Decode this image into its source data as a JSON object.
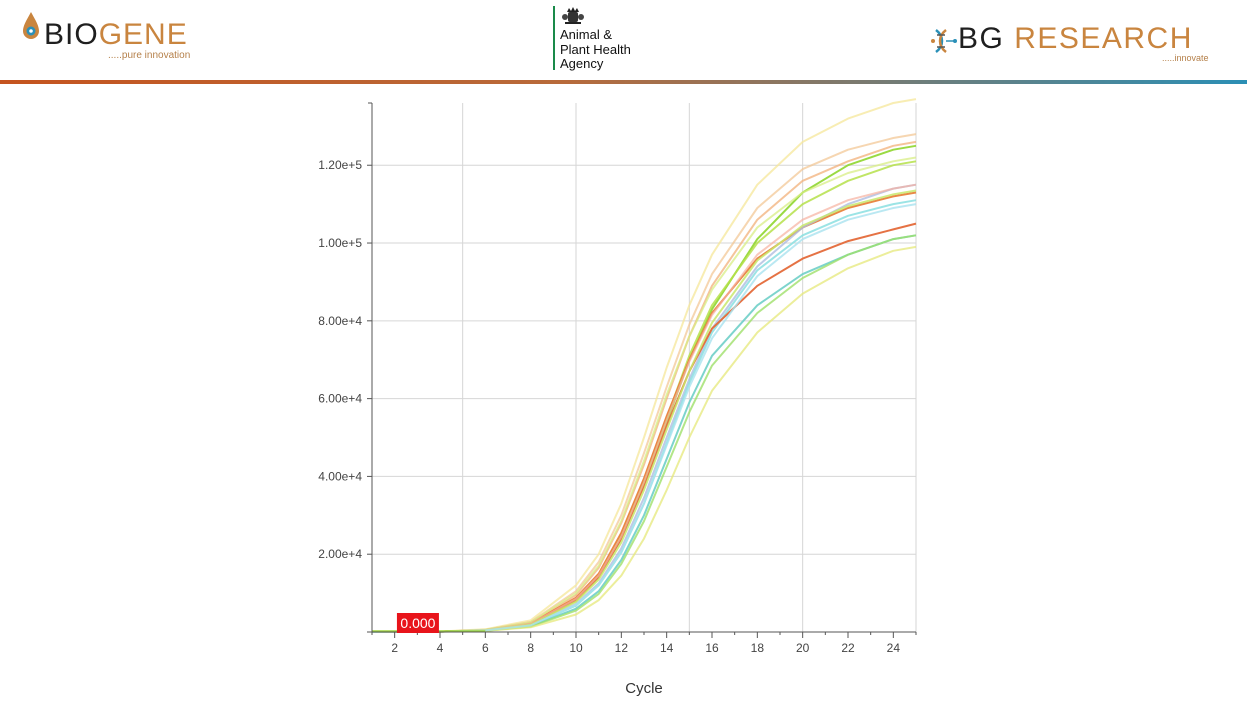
{
  "header": {
    "biogene": {
      "brand_part1": "BIO",
      "brand_part2": "GENE",
      "tagline": ".....pure innovation"
    },
    "apha": {
      "name": "Animal &\nPlant Health\nAgency",
      "crest_icon": "royal-crest-icon"
    },
    "bg_research": {
      "brand_part1": "BG ",
      "brand_part2": "RESEARCH",
      "tagline": ".....innovate",
      "icon": "circuit-dna-icon"
    },
    "rule_colors": [
      "#c5541f",
      "#2b8fb5"
    ]
  },
  "chart_data": {
    "type": "line",
    "title": "",
    "xlabel": "Cycle",
    "ylabel": "",
    "xlim": [
      1,
      25
    ],
    "ylim": [
      0,
      136000
    ],
    "x_ticks": [
      2,
      4,
      6,
      8,
      10,
      12,
      14,
      16,
      18,
      20,
      22,
      24
    ],
    "y_ticks": [
      0,
      20000,
      40000,
      60000,
      80000,
      100000,
      120000
    ],
    "y_tick_labels": [
      "",
      "2.00e+4",
      "4.00e+4",
      "6.00e+4",
      "8.00e+4",
      "1.00e+5",
      "1.20e+5"
    ],
    "grid_x": [
      5,
      10,
      15,
      20
    ],
    "grid": true,
    "legend": "none",
    "threshold_label": "0.000",
    "threshold_color": "#e8141b",
    "series": [
      {
        "color": "#f5e79a",
        "opacity": 0.75,
        "values": [
          [
            1,
            0
          ],
          [
            2,
            50
          ],
          [
            4,
            120
          ],
          [
            6,
            700
          ],
          [
            8,
            3000
          ],
          [
            10,
            12000
          ],
          [
            11,
            20000
          ],
          [
            12,
            33000
          ],
          [
            13,
            50000
          ],
          [
            14,
            68000
          ],
          [
            15,
            84000
          ],
          [
            16,
            97000
          ],
          [
            18,
            115000
          ],
          [
            20,
            126000
          ],
          [
            22,
            132000
          ],
          [
            24,
            136000
          ],
          [
            25,
            137000
          ]
        ]
      },
      {
        "color": "#f2c590",
        "opacity": 0.7,
        "values": [
          [
            1,
            0
          ],
          [
            2,
            50
          ],
          [
            4,
            100
          ],
          [
            6,
            600
          ],
          [
            8,
            2600
          ],
          [
            10,
            10500
          ],
          [
            11,
            18000
          ],
          [
            12,
            30000
          ],
          [
            13,
            46000
          ],
          [
            14,
            63000
          ],
          [
            15,
            79000
          ],
          [
            16,
            92000
          ],
          [
            18,
            109000
          ],
          [
            20,
            119000
          ],
          [
            22,
            124000
          ],
          [
            24,
            127000
          ],
          [
            25,
            128000
          ]
        ]
      },
      {
        "color": "#f2b07a",
        "opacity": 0.75,
        "values": [
          [
            1,
            0
          ],
          [
            2,
            40
          ],
          [
            4,
            100
          ],
          [
            6,
            500
          ],
          [
            8,
            2300
          ],
          [
            10,
            9500
          ],
          [
            11,
            16500
          ],
          [
            12,
            28000
          ],
          [
            13,
            43000
          ],
          [
            14,
            60000
          ],
          [
            15,
            76000
          ],
          [
            16,
            89000
          ],
          [
            18,
            106000
          ],
          [
            20,
            116000
          ],
          [
            22,
            121000
          ],
          [
            24,
            125000
          ],
          [
            25,
            126000
          ]
        ]
      },
      {
        "color": "#8fd62f",
        "opacity": 0.9,
        "values": [
          [
            1,
            0
          ],
          [
            2,
            40
          ],
          [
            4,
            100
          ],
          [
            6,
            450
          ],
          [
            8,
            2000
          ],
          [
            10,
            8000
          ],
          [
            11,
            14000
          ],
          [
            12,
            24000
          ],
          [
            13,
            38000
          ],
          [
            14,
            54000
          ],
          [
            15,
            70000
          ],
          [
            16,
            83000
          ],
          [
            18,
            101000
          ],
          [
            20,
            113000
          ],
          [
            22,
            120000
          ],
          [
            24,
            124000
          ],
          [
            25,
            125000
          ]
        ]
      },
      {
        "color": "#b5e04a",
        "opacity": 0.85,
        "values": [
          [
            1,
            0
          ],
          [
            2,
            40
          ],
          [
            4,
            100
          ],
          [
            6,
            450
          ],
          [
            8,
            2100
          ],
          [
            10,
            8500
          ],
          [
            11,
            14500
          ],
          [
            12,
            25000
          ],
          [
            13,
            39000
          ],
          [
            14,
            55000
          ],
          [
            15,
            71000
          ],
          [
            16,
            84000
          ],
          [
            18,
            100000
          ],
          [
            20,
            110000
          ],
          [
            22,
            116000
          ],
          [
            24,
            120000
          ],
          [
            25,
            121000
          ]
        ]
      },
      {
        "color": "#e8823c",
        "opacity": 0.95,
        "values": [
          [
            1,
            0
          ],
          [
            2,
            40
          ],
          [
            4,
            100
          ],
          [
            6,
            500
          ],
          [
            8,
            2200
          ],
          [
            10,
            8800
          ],
          [
            11,
            15000
          ],
          [
            12,
            25500
          ],
          [
            13,
            39500
          ],
          [
            14,
            55500
          ],
          [
            15,
            70000
          ],
          [
            16,
            82000
          ],
          [
            18,
            96000
          ],
          [
            20,
            104000
          ],
          [
            22,
            109000
          ],
          [
            24,
            112000
          ],
          [
            25,
            113000
          ]
        ]
      },
      {
        "color": "#aebde0",
        "opacity": 0.8,
        "values": [
          [
            1,
            0
          ],
          [
            2,
            40
          ],
          [
            4,
            100
          ],
          [
            6,
            400
          ],
          [
            8,
            1800
          ],
          [
            10,
            7200
          ],
          [
            11,
            12500
          ],
          [
            12,
            21500
          ],
          [
            13,
            34500
          ],
          [
            14,
            50000
          ],
          [
            15,
            65000
          ],
          [
            16,
            78000
          ],
          [
            18,
            94000
          ],
          [
            20,
            104000
          ],
          [
            22,
            110000
          ],
          [
            24,
            114000
          ],
          [
            25,
            115000
          ]
        ]
      },
      {
        "color": "#89dfe0",
        "opacity": 0.85,
        "values": [
          [
            1,
            0
          ],
          [
            2,
            40
          ],
          [
            4,
            100
          ],
          [
            6,
            380
          ],
          [
            8,
            1700
          ],
          [
            10,
            6800
          ],
          [
            11,
            12000
          ],
          [
            12,
            20500
          ],
          [
            13,
            33000
          ],
          [
            14,
            48500
          ],
          [
            15,
            64000
          ],
          [
            16,
            77000
          ],
          [
            18,
            93000
          ],
          [
            20,
            102000
          ],
          [
            22,
            107000
          ],
          [
            24,
            110000
          ],
          [
            25,
            111000
          ]
        ]
      },
      {
        "color": "#e46a3a",
        "opacity": 0.95,
        "values": [
          [
            1,
            0
          ],
          [
            2,
            40
          ],
          [
            4,
            100
          ],
          [
            6,
            420
          ],
          [
            8,
            2000
          ],
          [
            10,
            8200
          ],
          [
            11,
            14200
          ],
          [
            12,
            24000
          ],
          [
            13,
            37500
          ],
          [
            14,
            53000
          ],
          [
            15,
            67000
          ],
          [
            16,
            78000
          ],
          [
            18,
            89000
          ],
          [
            20,
            96000
          ],
          [
            22,
            100500
          ],
          [
            24,
            103500
          ],
          [
            25,
            105000
          ]
        ]
      },
      {
        "color": "#6fcfc8",
        "opacity": 0.9,
        "values": [
          [
            1,
            0
          ],
          [
            2,
            40
          ],
          [
            4,
            100
          ],
          [
            6,
            350
          ],
          [
            8,
            1500
          ],
          [
            10,
            6000
          ],
          [
            11,
            10500
          ],
          [
            12,
            18500
          ],
          [
            13,
            30000
          ],
          [
            14,
            44500
          ],
          [
            15,
            59000
          ],
          [
            16,
            71000
          ],
          [
            18,
            84000
          ],
          [
            20,
            92000
          ],
          [
            22,
            97000
          ],
          [
            24,
            101000
          ],
          [
            25,
            102000
          ]
        ]
      },
      {
        "color": "#9fe06a",
        "opacity": 0.8,
        "values": [
          [
            1,
            0
          ],
          [
            2,
            40
          ],
          [
            4,
            100
          ],
          [
            6,
            330
          ],
          [
            8,
            1400
          ],
          [
            10,
            5500
          ],
          [
            11,
            9800
          ],
          [
            12,
            17500
          ],
          [
            13,
            28500
          ],
          [
            14,
            42500
          ],
          [
            15,
            56500
          ],
          [
            16,
            68500
          ],
          [
            18,
            82000
          ],
          [
            20,
            91000
          ],
          [
            22,
            97000
          ],
          [
            24,
            101000
          ],
          [
            25,
            102000
          ]
        ]
      },
      {
        "color": "#e6e87a",
        "opacity": 0.75,
        "values": [
          [
            1,
            0
          ],
          [
            2,
            40
          ],
          [
            4,
            80
          ],
          [
            6,
            300
          ],
          [
            8,
            1200
          ],
          [
            10,
            4500
          ],
          [
            11,
            8200
          ],
          [
            12,
            14500
          ],
          [
            13,
            24000
          ],
          [
            14,
            36500
          ],
          [
            15,
            50000
          ],
          [
            16,
            62000
          ],
          [
            18,
            77000
          ],
          [
            20,
            87000
          ],
          [
            22,
            93500
          ],
          [
            24,
            98000
          ],
          [
            25,
            99000
          ]
        ]
      },
      {
        "color": "#d8ee86",
        "opacity": 0.75,
        "values": [
          [
            1,
            0
          ],
          [
            2,
            40
          ],
          [
            4,
            100
          ],
          [
            6,
            600
          ],
          [
            8,
            2500
          ],
          [
            10,
            10000
          ],
          [
            11,
            17000
          ],
          [
            12,
            28500
          ],
          [
            13,
            44000
          ],
          [
            14,
            61000
          ],
          [
            15,
            76000
          ],
          [
            16,
            88000
          ],
          [
            18,
            104000
          ],
          [
            20,
            113000
          ],
          [
            22,
            118000
          ],
          [
            24,
            121000
          ],
          [
            25,
            122000
          ]
        ]
      },
      {
        "color": "#f6b0a0",
        "opacity": 0.7,
        "values": [
          [
            1,
            0
          ],
          [
            2,
            40
          ],
          [
            4,
            100
          ],
          [
            6,
            480
          ],
          [
            8,
            2100
          ],
          [
            10,
            8500
          ],
          [
            11,
            14500
          ],
          [
            12,
            24500
          ],
          [
            13,
            38500
          ],
          [
            14,
            54500
          ],
          [
            15,
            69500
          ],
          [
            16,
            81500
          ],
          [
            18,
            97000
          ],
          [
            20,
            106000
          ],
          [
            22,
            111000
          ],
          [
            24,
            114000
          ],
          [
            25,
            115000
          ]
        ]
      },
      {
        "color": "#c9e86c",
        "opacity": 0.85,
        "values": [
          [
            1,
            0
          ],
          [
            2,
            40
          ],
          [
            4,
            100
          ],
          [
            6,
            440
          ],
          [
            8,
            1900
          ],
          [
            10,
            7800
          ],
          [
            11,
            13500
          ],
          [
            12,
            23000
          ],
          [
            13,
            36500
          ],
          [
            14,
            52000
          ],
          [
            15,
            67000
          ],
          [
            16,
            79500
          ],
          [
            18,
            95500
          ],
          [
            20,
            104500
          ],
          [
            22,
            109500
          ],
          [
            24,
            112500
          ],
          [
            25,
            113500
          ]
        ]
      },
      {
        "color": "#a9e2ef",
        "opacity": 0.8,
        "values": [
          [
            1,
            0
          ],
          [
            2,
            40
          ],
          [
            4,
            100
          ],
          [
            6,
            400
          ],
          [
            8,
            1700
          ],
          [
            10,
            7000
          ],
          [
            11,
            12000
          ],
          [
            12,
            20500
          ],
          [
            13,
            33000
          ],
          [
            14,
            48000
          ],
          [
            15,
            63000
          ],
          [
            16,
            75500
          ],
          [
            18,
            91500
          ],
          [
            20,
            101000
          ],
          [
            22,
            106000
          ],
          [
            24,
            109000
          ],
          [
            25,
            110000
          ]
        ]
      }
    ]
  }
}
